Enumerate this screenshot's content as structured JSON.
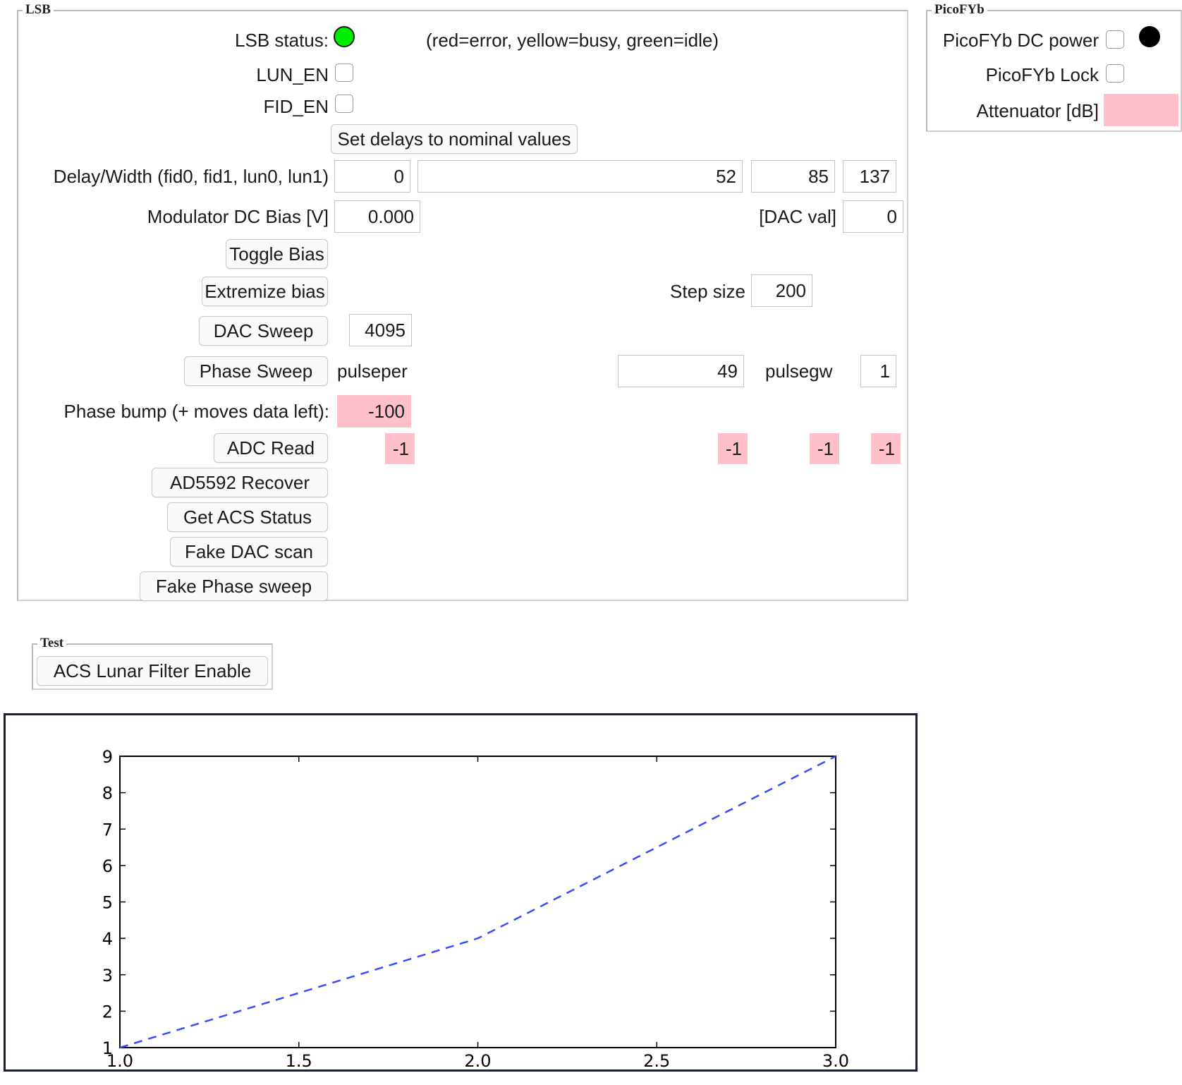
{
  "lsb": {
    "legend": "LSB",
    "status_label": "LSB status:",
    "status_color": "#00ee00",
    "status_hint": "(red=error, yellow=busy, green=idle)",
    "lun_en_label": "LUN_EN",
    "fid_en_label": "FID_EN",
    "set_delays_button": "Set delays to nominal values",
    "delay_label": "Delay/Width (fid0, fid1, lun0, lun1)",
    "delay_values": [
      "0",
      "52",
      "85",
      "137"
    ],
    "mod_bias_label": "Modulator DC Bias [V]",
    "mod_bias_value": "0.000",
    "dac_val_label": "[DAC val]",
    "dac_val_value": "0",
    "toggle_bias_button": "Toggle Bias",
    "extremize_bias_button": "Extremize bias",
    "step_size_label": "Step size",
    "step_size_value": "200",
    "dac_sweep_button": "DAC Sweep",
    "dac_sweep_value": "4095",
    "phase_sweep_button": "Phase Sweep",
    "pulseper_label": "pulseper",
    "pulseper_value": "49",
    "pulsegw_label": "pulsegw",
    "pulsegw_value": "1",
    "phase_bump_label": "Phase bump (+ moves data left):",
    "phase_bump_value": "-100",
    "adc_read_button": "ADC Read",
    "adc_values": [
      "-1",
      "-1",
      "-1",
      "-1"
    ],
    "ad5592_recover_button": "AD5592 Recover",
    "get_acs_status_button": "Get ACS Status",
    "fake_dac_scan_button": "Fake DAC scan",
    "fake_phase_sweep_button": "Fake Phase sweep"
  },
  "picofyb": {
    "legend": "PicoFYb",
    "dc_power_label": "PicoFYb DC power",
    "dc_power_indicator_color": "#000000",
    "lock_label": "PicoFYb Lock",
    "attenuator_label": "Attenuator [dB]",
    "attenuator_value": ""
  },
  "test": {
    "legend": "Test",
    "acs_lunar_button": "ACS Lunar Filter Enable"
  },
  "chart_data": {
    "type": "line",
    "x": [
      1.0,
      2.0,
      3.0
    ],
    "series": [
      {
        "values": [
          1,
          4,
          9
        ],
        "color": "#3a4bff",
        "style": "dashed"
      }
    ],
    "xlim": [
      1.0,
      3.0
    ],
    "ylim": [
      1,
      9
    ],
    "xticks": [
      "1.0",
      "1.5",
      "2.0",
      "2.5",
      "3.0"
    ],
    "yticks": [
      "1",
      "2",
      "3",
      "4",
      "5",
      "6",
      "7",
      "8",
      "9"
    ],
    "grid": false,
    "title": "",
    "xlabel": "",
    "ylabel": ""
  }
}
